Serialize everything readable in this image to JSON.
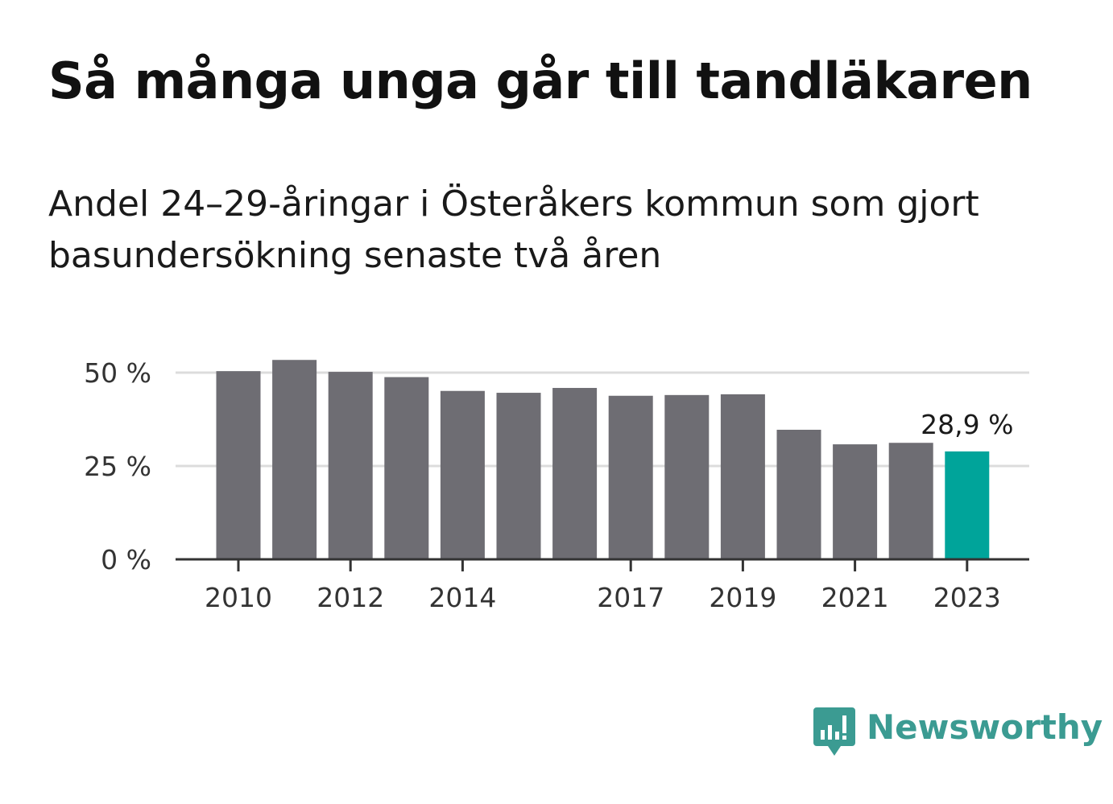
{
  "header": {
    "title": "Så många unga går till tandläkaren",
    "subtitle": "Andel 24–29-åringar i Österåkers kommun som gjort basundersökning senaste två åren"
  },
  "brand": {
    "name": "Newsworthy",
    "color": "#3b9b92",
    "icon": "speech-bubble-bar-chart-icon"
  },
  "chart_data": {
    "type": "bar",
    "categories": [
      "2010",
      "2011",
      "2012",
      "2013",
      "2014",
      "2015",
      "2016",
      "2017",
      "2018",
      "2019",
      "2020",
      "2021",
      "2022",
      "2023"
    ],
    "values": [
      50.4,
      53.4,
      50.2,
      48.8,
      45.1,
      44.6,
      45.9,
      43.8,
      44.0,
      44.2,
      34.7,
      30.8,
      31.2,
      28.9
    ],
    "x_tick_labels": [
      "2010",
      "2012",
      "2014",
      "2017",
      "2019",
      "2021",
      "2023"
    ],
    "y_ticks": [
      0,
      25,
      50
    ],
    "y_tick_labels": [
      "0 %",
      "25 %",
      "50 %"
    ],
    "ylim": [
      0,
      62
    ],
    "grid": true,
    "bar_color": "#6e6d73",
    "highlight_color": "#00a49a",
    "highlight_category": "2023",
    "annotations": [
      {
        "category": "2023",
        "text": "28,9 %"
      }
    ]
  }
}
